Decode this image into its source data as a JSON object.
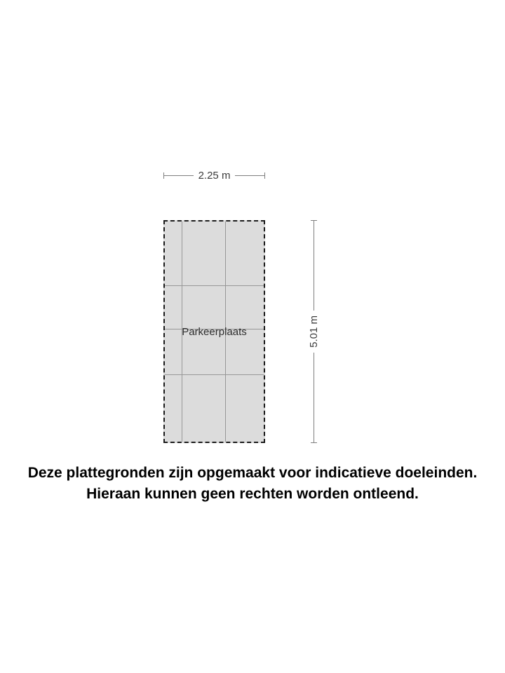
{
  "floorplan": {
    "room_label": "Parkeerplaats",
    "dimensions": {
      "width_label": "2.25 m",
      "height_label": "5.01 m"
    }
  },
  "disclaimer": {
    "line1": "Deze plattegronden zijn opgemaakt voor indicatieve doeleinden.",
    "line2": "Hieraan kunnen geen rechten worden ontleend."
  },
  "colors": {
    "background": "#ffffff",
    "room_fill": "#dcdcdc",
    "room_border": "#1b1b1b",
    "grid_line": "#979797",
    "dimension_line": "#7e7e7e",
    "dimension_text": "#3c3c3c",
    "disclaimer_text": "#000000"
  }
}
